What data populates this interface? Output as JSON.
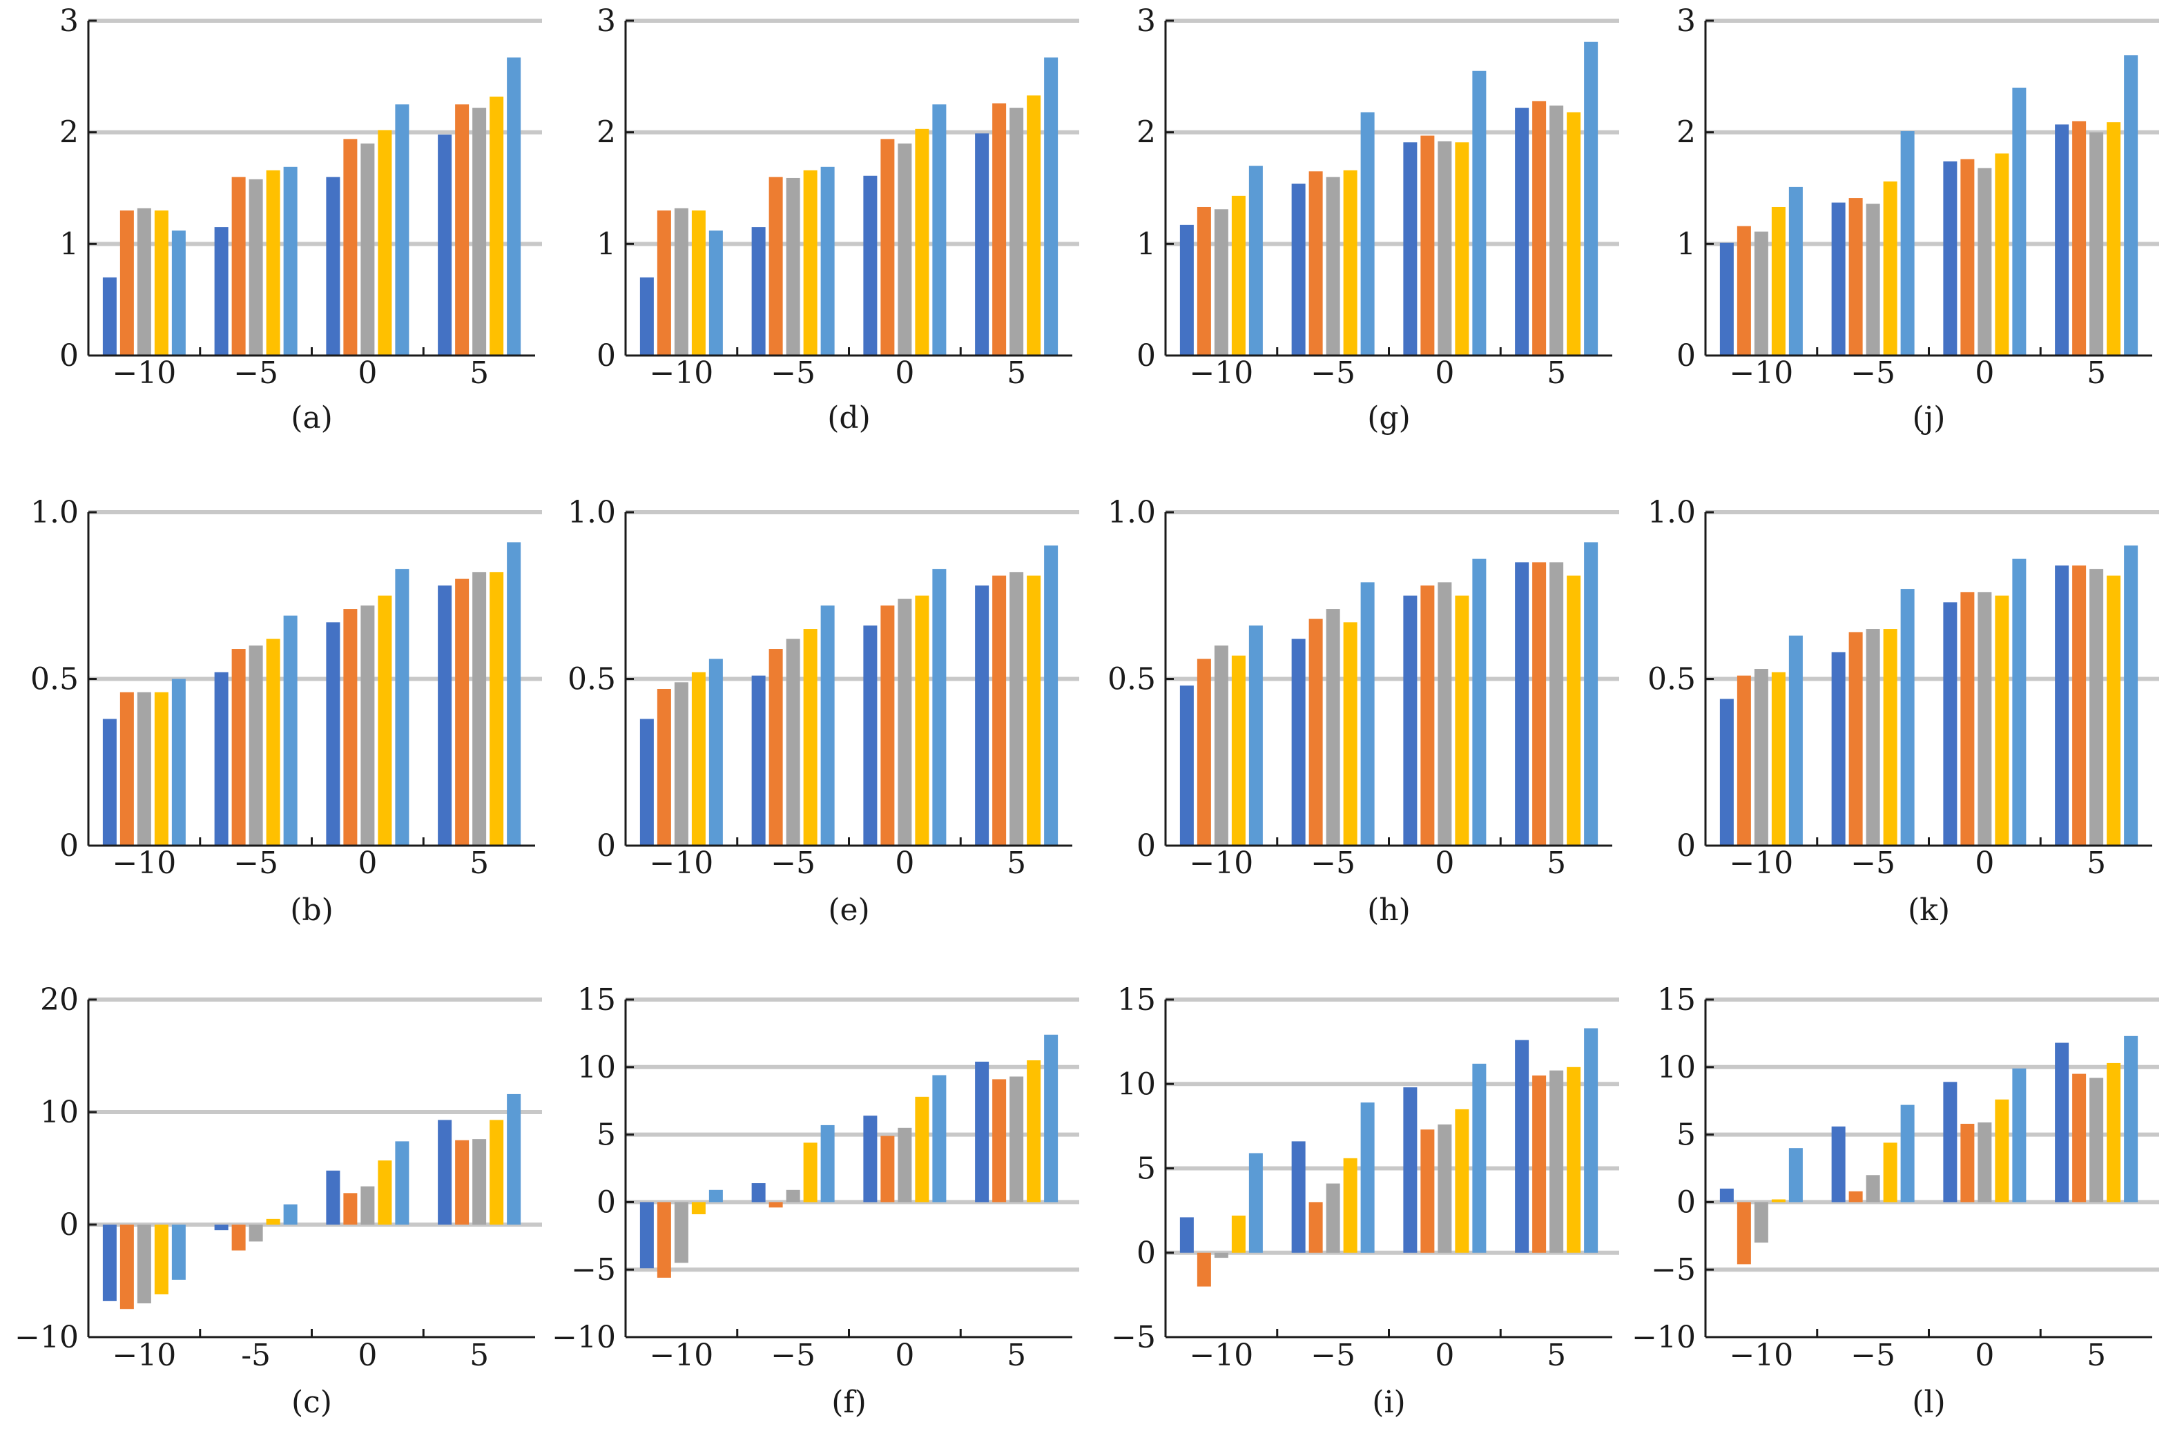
{
  "colors": {
    "series_palette": [
      "#4472c4",
      "#ed7d31",
      "#a5a5a5",
      "#ffc000",
      "#5b9bd5"
    ],
    "gridline": "#c8c8c8",
    "axis": "#1a1a1a"
  },
  "chart_data": [
    {
      "panel": "(a)",
      "type": "bar",
      "categories": [
        "−10",
        "−5",
        "0",
        "5"
      ],
      "ylim": [
        0,
        3
      ],
      "yticks": [
        0,
        1,
        2,
        3
      ],
      "ytick_labels": [
        "0",
        "1",
        "2",
        "3"
      ],
      "grid": true,
      "grid_values": [
        1,
        2,
        3
      ],
      "series": [
        {
          "values": [
            0.7,
            1.15,
            1.6,
            1.98
          ]
        },
        {
          "values": [
            1.3,
            1.6,
            1.94,
            2.25
          ]
        },
        {
          "values": [
            1.32,
            1.58,
            1.9,
            2.22
          ]
        },
        {
          "values": [
            1.3,
            1.66,
            2.02,
            2.32
          ]
        },
        {
          "values": [
            1.12,
            1.69,
            2.25,
            2.67
          ]
        }
      ]
    },
    {
      "panel": "(d)",
      "type": "bar",
      "categories": [
        "−10",
        "−5",
        "0",
        "5"
      ],
      "ylim": [
        0,
        3
      ],
      "yticks": [
        0,
        1,
        2,
        3
      ],
      "ytick_labels": [
        "0",
        "1",
        "2",
        "3"
      ],
      "grid": true,
      "grid_values": [
        1,
        2,
        3
      ],
      "series": [
        {
          "values": [
            0.7,
            1.15,
            1.61,
            1.99
          ]
        },
        {
          "values": [
            1.3,
            1.6,
            1.94,
            2.26
          ]
        },
        {
          "values": [
            1.32,
            1.59,
            1.9,
            2.22
          ]
        },
        {
          "values": [
            1.3,
            1.66,
            2.03,
            2.33
          ]
        },
        {
          "values": [
            1.12,
            1.69,
            2.25,
            2.67
          ]
        }
      ]
    },
    {
      "panel": "(g)",
      "type": "bar",
      "categories": [
        "−10",
        "−5",
        "0",
        "5"
      ],
      "ylim": [
        0,
        3
      ],
      "yticks": [
        0,
        1,
        2,
        3
      ],
      "ytick_labels": [
        "0",
        "1",
        "2",
        "3"
      ],
      "grid": true,
      "grid_values": [
        1,
        2,
        3
      ],
      "series": [
        {
          "values": [
            1.17,
            1.54,
            1.91,
            2.22
          ]
        },
        {
          "values": [
            1.33,
            1.65,
            1.97,
            2.28
          ]
        },
        {
          "values": [
            1.31,
            1.6,
            1.92,
            2.24
          ]
        },
        {
          "values": [
            1.43,
            1.66,
            1.91,
            2.18
          ]
        },
        {
          "values": [
            1.7,
            2.18,
            2.55,
            2.81
          ]
        }
      ]
    },
    {
      "panel": "(j)",
      "type": "bar",
      "categories": [
        "−10",
        "−5",
        "0",
        "5"
      ],
      "ylim": [
        0,
        3
      ],
      "yticks": [
        0,
        1,
        2,
        3
      ],
      "ytick_labels": [
        "0",
        "1",
        "2",
        "3"
      ],
      "grid": true,
      "grid_values": [
        1,
        2,
        3
      ],
      "series": [
        {
          "values": [
            1.01,
            1.37,
            1.74,
            2.07
          ]
        },
        {
          "values": [
            1.16,
            1.41,
            1.76,
            2.1
          ]
        },
        {
          "values": [
            1.11,
            1.36,
            1.68,
            2.0
          ]
        },
        {
          "values": [
            1.33,
            1.56,
            1.81,
            2.09
          ]
        },
        {
          "values": [
            1.51,
            2.01,
            2.4,
            2.69
          ]
        }
      ]
    },
    {
      "panel": "(b)",
      "type": "bar",
      "categories": [
        "−10",
        "−5",
        "0",
        "5"
      ],
      "ylim": [
        0,
        1
      ],
      "yticks": [
        0,
        0.5,
        1
      ],
      "ytick_labels": [
        "0",
        "0.5",
        "1.0"
      ],
      "grid": true,
      "grid_values": [
        0.5,
        1.0
      ],
      "series": [
        {
          "values": [
            0.38,
            0.52,
            0.67,
            0.78
          ]
        },
        {
          "values": [
            0.46,
            0.59,
            0.71,
            0.8
          ]
        },
        {
          "values": [
            0.46,
            0.6,
            0.72,
            0.82
          ]
        },
        {
          "values": [
            0.46,
            0.62,
            0.75,
            0.82
          ]
        },
        {
          "values": [
            0.5,
            0.69,
            0.83,
            0.91
          ]
        }
      ]
    },
    {
      "panel": "(e)",
      "type": "bar",
      "categories": [
        "−10",
        "−5",
        "0",
        "5"
      ],
      "ylim": [
        0,
        1
      ],
      "yticks": [
        0,
        0.5,
        1
      ],
      "ytick_labels": [
        "0",
        "0.5",
        "1.0"
      ],
      "grid": true,
      "grid_values": [
        0.5,
        1.0
      ],
      "series": [
        {
          "values": [
            0.38,
            0.51,
            0.66,
            0.78
          ]
        },
        {
          "values": [
            0.47,
            0.59,
            0.72,
            0.81
          ]
        },
        {
          "values": [
            0.49,
            0.62,
            0.74,
            0.82
          ]
        },
        {
          "values": [
            0.52,
            0.65,
            0.75,
            0.81
          ]
        },
        {
          "values": [
            0.56,
            0.72,
            0.83,
            0.9
          ]
        }
      ]
    },
    {
      "panel": "(h)",
      "type": "bar",
      "categories": [
        "−10",
        "−5",
        "0",
        "5"
      ],
      "ylim": [
        0,
        1
      ],
      "yticks": [
        0,
        0.5,
        1
      ],
      "ytick_labels": [
        "0",
        "0.5",
        "1.0"
      ],
      "grid": true,
      "grid_values": [
        0.5,
        1.0
      ],
      "series": [
        {
          "values": [
            0.48,
            0.62,
            0.75,
            0.85
          ]
        },
        {
          "values": [
            0.56,
            0.68,
            0.78,
            0.85
          ]
        },
        {
          "values": [
            0.6,
            0.71,
            0.79,
            0.85
          ]
        },
        {
          "values": [
            0.57,
            0.67,
            0.75,
            0.81
          ]
        },
        {
          "values": [
            0.66,
            0.79,
            0.86,
            0.91
          ]
        }
      ]
    },
    {
      "panel": "(k)",
      "type": "bar",
      "categories": [
        "−10",
        "−5",
        "0",
        "5"
      ],
      "ylim": [
        0,
        1
      ],
      "yticks": [
        0,
        0.5,
        1
      ],
      "ytick_labels": [
        "0",
        "0.5",
        "1.0"
      ],
      "grid": true,
      "grid_values": [
        0.5,
        1.0
      ],
      "series": [
        {
          "values": [
            0.44,
            0.58,
            0.73,
            0.84
          ]
        },
        {
          "values": [
            0.51,
            0.64,
            0.76,
            0.84
          ]
        },
        {
          "values": [
            0.53,
            0.65,
            0.76,
            0.83
          ]
        },
        {
          "values": [
            0.52,
            0.65,
            0.75,
            0.81
          ]
        },
        {
          "values": [
            0.63,
            0.77,
            0.86,
            0.9
          ]
        }
      ]
    },
    {
      "panel": "(c)",
      "type": "bar",
      "categories": [
        "−10",
        "-5",
        "0",
        "5"
      ],
      "ylim": [
        -10,
        20
      ],
      "yticks": [
        -10,
        0,
        10,
        20
      ],
      "ytick_labels": [
        "−10",
        "0",
        "10",
        "20"
      ],
      "grid": true,
      "grid_values": [
        0,
        10,
        20
      ],
      "series": [
        {
          "values": [
            -6.8,
            -0.5,
            4.8,
            9.3
          ]
        },
        {
          "values": [
            -7.5,
            -2.3,
            2.8,
            7.5
          ]
        },
        {
          "values": [
            -7.0,
            -1.5,
            3.4,
            7.6
          ]
        },
        {
          "values": [
            -6.2,
            0.5,
            5.7,
            9.3
          ]
        },
        {
          "values": [
            -4.9,
            1.8,
            7.4,
            11.6
          ]
        }
      ]
    },
    {
      "panel": "(f)",
      "type": "bar",
      "categories": [
        "−10",
        "−5",
        "0",
        "5"
      ],
      "ylim": [
        -10,
        15
      ],
      "yticks": [
        -10,
        -5,
        0,
        5,
        10,
        15
      ],
      "ytick_labels": [
        "−10",
        "−5",
        "0",
        "5",
        "10",
        "15"
      ],
      "grid": true,
      "grid_values": [
        -5,
        0,
        5,
        10,
        15
      ],
      "series": [
        {
          "values": [
            -4.9,
            1.4,
            6.4,
            10.4
          ]
        },
        {
          "values": [
            -5.6,
            -0.4,
            4.9,
            9.1
          ]
        },
        {
          "values": [
            -4.5,
            0.9,
            5.5,
            9.3
          ]
        },
        {
          "values": [
            -0.9,
            4.4,
            7.8,
            10.5
          ]
        },
        {
          "values": [
            0.9,
            5.7,
            9.4,
            12.4
          ]
        }
      ]
    },
    {
      "panel": "(i)",
      "type": "bar",
      "categories": [
        "−10",
        "−5",
        "0",
        "5"
      ],
      "ylim": [
        -5,
        15
      ],
      "yticks": [
        -5,
        0,
        5,
        10,
        15
      ],
      "ytick_labels": [
        "−5",
        "0",
        "5",
        "10",
        "15"
      ],
      "grid": true,
      "grid_values": [
        0,
        5,
        10,
        15
      ],
      "series": [
        {
          "values": [
            2.1,
            6.6,
            9.8,
            12.6
          ]
        },
        {
          "values": [
            -2.0,
            3.0,
            7.3,
            10.5
          ]
        },
        {
          "values": [
            -0.3,
            4.1,
            7.6,
            10.8
          ]
        },
        {
          "values": [
            2.2,
            5.6,
            8.5,
            11.0
          ]
        },
        {
          "values": [
            5.9,
            8.9,
            11.2,
            13.3
          ]
        }
      ]
    },
    {
      "panel": "(l)",
      "type": "bar",
      "categories": [
        "−10",
        "−5",
        "0",
        "5"
      ],
      "ylim": [
        -10,
        15
      ],
      "yticks": [
        -10,
        -5,
        0,
        5,
        10,
        15
      ],
      "ytick_labels": [
        "−10",
        "−5",
        "0",
        "5",
        "10",
        "15"
      ],
      "grid": true,
      "grid_values": [
        -5,
        0,
        5,
        10,
        15
      ],
      "series": [
        {
          "values": [
            1.0,
            5.6,
            8.9,
            11.8
          ]
        },
        {
          "values": [
            -4.6,
            0.8,
            5.8,
            9.5
          ]
        },
        {
          "values": [
            -3.0,
            2.0,
            5.9,
            9.2
          ]
        },
        {
          "values": [
            0.2,
            4.4,
            7.6,
            10.3
          ]
        },
        {
          "values": [
            4.0,
            7.2,
            9.9,
            12.3
          ]
        }
      ]
    }
  ]
}
